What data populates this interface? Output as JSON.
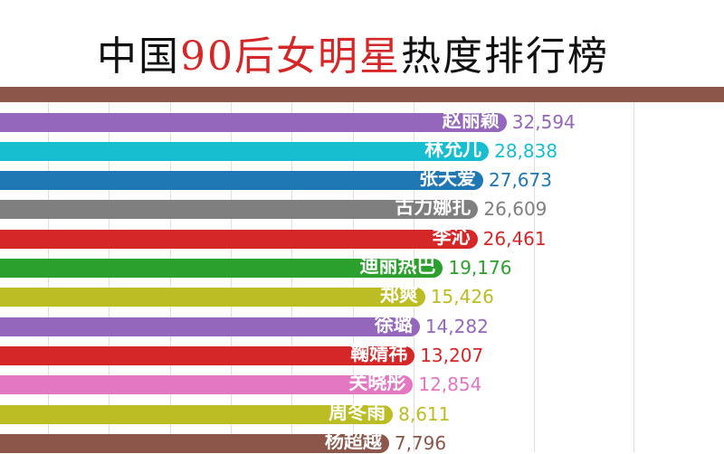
{
  "chart_data": {
    "type": "bar",
    "orientation": "horizontal",
    "title_parts": [
      "中国",
      "90后女明星",
      "热度排行榜"
    ],
    "categories": [
      "赵丽颖",
      "林允儿",
      "张天爱",
      "古力娜扎",
      "李沁",
      "迪丽热巴",
      "郑爽",
      "徐璐",
      "鞠婧祎",
      "关晓彤",
      "周冬雨",
      "杨超越"
    ],
    "values": [
      32594,
      28838,
      27673,
      26609,
      26461,
      19176,
      15426,
      14282,
      13207,
      12854,
      8611,
      7796
    ],
    "value_labels": [
      "32,594",
      "28,838",
      "27,673",
      "26,609",
      "26,461",
      "19,176",
      "15,426",
      "14,282",
      "13,207",
      "12,854",
      "8,611",
      "7,796"
    ],
    "colors": [
      "#9467bd",
      "#17becf",
      "#1f77b4",
      "#7f7f7f",
      "#d62728",
      "#2ca02c",
      "#bcbd22",
      "#9467bd",
      "#d62728",
      "#e377c2",
      "#bcbd22",
      "#8c564b"
    ],
    "top_partial_bar_color": "#8c564b",
    "grid": true
  }
}
